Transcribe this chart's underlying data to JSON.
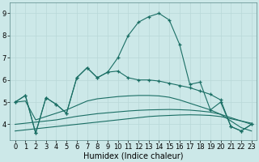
{
  "x": [
    0,
    1,
    2,
    3,
    4,
    5,
    6,
    7,
    8,
    9,
    10,
    11,
    12,
    13,
    14,
    15,
    16,
    17,
    18,
    19,
    20,
    21,
    22,
    23
  ],
  "line_main": [
    5.0,
    5.3,
    3.6,
    5.2,
    4.9,
    4.5,
    6.1,
    6.55,
    6.1,
    6.35,
    7.0,
    8.0,
    8.6,
    8.85,
    9.0,
    8.7,
    7.6,
    5.8,
    5.9,
    4.65,
    5.0,
    3.9,
    3.7,
    4.0
  ],
  "line_A": [
    5.0,
    5.3,
    3.6,
    5.2,
    4.9,
    4.5,
    6.1,
    6.55,
    6.1,
    6.35,
    6.4,
    6.1,
    6.0,
    6.0,
    5.95,
    5.85,
    5.75,
    5.65,
    5.5,
    5.35,
    5.1,
    3.9,
    3.7,
    4.0
  ],
  "line_B": [
    4.9,
    5.0,
    null,
    null,
    null,
    null,
    null,
    null,
    null,
    null,
    4.9,
    5.0,
    5.05,
    5.1,
    5.1,
    5.05,
    4.95,
    4.85,
    5.5,
    4.65,
    5.0,
    null,
    null,
    4.0
  ],
  "line_trend_low1": [
    3.7,
    3.75,
    3.8,
    3.85,
    3.9,
    3.95,
    4.0,
    4.05,
    4.1,
    4.15,
    4.2,
    4.25,
    4.3,
    4.35,
    4.38,
    4.4,
    4.42,
    4.43,
    4.42,
    4.4,
    4.35,
    4.25,
    4.15,
    4.05
  ],
  "line_trend_low2": [
    4.0,
    4.05,
    4.1,
    4.15,
    4.2,
    4.28,
    4.36,
    4.42,
    4.48,
    4.52,
    4.56,
    4.6,
    4.63,
    4.65,
    4.66,
    4.67,
    4.66,
    4.64,
    4.6,
    4.55,
    4.45,
    4.3,
    4.15,
    4.0
  ],
  "line_trend_high": [
    5.0,
    5.05,
    4.2,
    4.35,
    4.5,
    4.65,
    4.85,
    5.05,
    5.15,
    5.2,
    5.25,
    5.28,
    5.3,
    5.3,
    5.28,
    5.22,
    5.1,
    4.95,
    4.8,
    4.65,
    4.45,
    4.15,
    3.85,
    3.7
  ],
  "bg_color": "#cce8e8",
  "grid_color": "#b8d8d8",
  "line_color": "#1a6e64",
  "ylabel_vals": [
    4,
    5,
    6,
    7,
    8,
    9
  ],
  "xlim": [
    -0.5,
    23.5
  ],
  "ylim": [
    3.3,
    9.5
  ],
  "xlabel": "Humidex (Indice chaleur)",
  "xlabel_fontsize": 7,
  "tick_fontsize": 6
}
